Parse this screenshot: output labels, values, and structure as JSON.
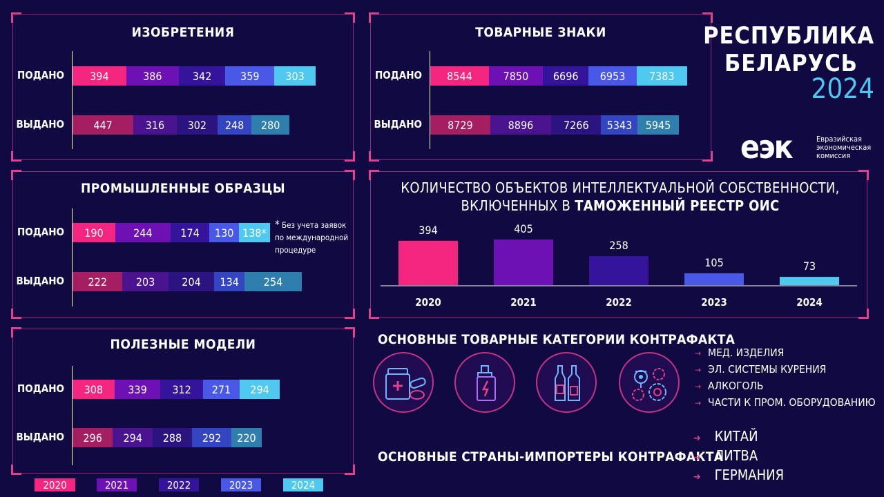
{
  "chart_data": [
    {
      "type": "bar",
      "orientation": "horizontal-stacked",
      "title": "ИЗОБРЕТЕНИЯ",
      "categories": [
        "ПОДАНО",
        "ВЫДАНО"
      ],
      "series": [
        {
          "name": "2020",
          "values": [
            394,
            447
          ]
        },
        {
          "name": "2021",
          "values": [
            386,
            316
          ]
        },
        {
          "name": "2022",
          "values": [
            342,
            302
          ]
        },
        {
          "name": "2023",
          "values": [
            359,
            248
          ]
        },
        {
          "name": "2024",
          "values": [
            303,
            280
          ]
        }
      ]
    },
    {
      "type": "bar",
      "orientation": "horizontal-stacked",
      "title": "ТОВАРНЫЕ ЗНАКИ",
      "categories": [
        "ПОДАНО",
        "ВЫДАНО"
      ],
      "series": [
        {
          "name": "2020",
          "values": [
            8544,
            8729
          ]
        },
        {
          "name": "2021",
          "values": [
            7850,
            8896
          ]
        },
        {
          "name": "2022",
          "values": [
            6696,
            7266
          ]
        },
        {
          "name": "2023",
          "values": [
            6953,
            5343
          ]
        },
        {
          "name": "2024",
          "values": [
            7383,
            5945
          ]
        }
      ]
    },
    {
      "type": "bar",
      "orientation": "horizontal-stacked",
      "title": "ПРОМЫШЛЕННЫЕ ОБРАЗЦЫ",
      "categories": [
        "ПОДАНО",
        "ВЫДАНО"
      ],
      "series": [
        {
          "name": "2020",
          "values": [
            190,
            222
          ]
        },
        {
          "name": "2021",
          "values": [
            244,
            203
          ]
        },
        {
          "name": "2022",
          "values": [
            174,
            204
          ]
        },
        {
          "name": "2023",
          "values": [
            130,
            134
          ]
        },
        {
          "name": "2024",
          "values": [
            138,
            254
          ]
        }
      ],
      "value_suffixes": {
        "0-4": "*"
      },
      "note_star": "*",
      "note": [
        "Без учета заявок",
        "по международной",
        "процедуре"
      ]
    },
    {
      "type": "bar",
      "orientation": "horizontal-stacked",
      "title": "ПОЛЕЗНЫЕ МОДЕЛИ",
      "categories": [
        "ПОДАНО",
        "ВЫДАНО"
      ],
      "series": [
        {
          "name": "2020",
          "values": [
            308,
            296
          ]
        },
        {
          "name": "2021",
          "values": [
            339,
            294
          ]
        },
        {
          "name": "2022",
          "values": [
            312,
            288
          ]
        },
        {
          "name": "2023",
          "values": [
            271,
            292
          ]
        },
        {
          "name": "2024",
          "values": [
            294,
            220
          ]
        }
      ]
    },
    {
      "type": "bar",
      "title_line1": "КОЛИЧЕСТВО ОБЪЕКТОВ ИНТЕЛЛЕКТУАЛЬНОЙ СОБСТВЕННОСТИ,",
      "title_line2_prefix": "ВКЛЮЧЕННЫХ В ",
      "title_line2_bold": "ТАМОЖЕННЫЙ РЕЕСТР ОИС",
      "categories": [
        "2020",
        "2021",
        "2022",
        "2023",
        "2024"
      ],
      "values": [
        394,
        405,
        258,
        105,
        73
      ],
      "ylim": [
        0,
        405
      ]
    }
  ],
  "colors": {
    "year_2020": "#f4267f",
    "year_2021": "#6d11b5",
    "year_2022": "#34149a",
    "year_2023": "#4a58e8",
    "year_2024": "#4fc9ef",
    "issued_2020": "#a51e62",
    "issued_2021": "#4a138f",
    "issued_2022": "#2b1480",
    "issued_2023": "#3345c0",
    "issued_2024": "#2f7fae",
    "background": "#110a42",
    "accent": "#e0408c"
  },
  "legend": [
    "2020",
    "2021",
    "2022",
    "2023",
    "2024"
  ],
  "header": {
    "line1": "РЕСПУБЛИКА",
    "line2": "БЕЛАРУСЬ",
    "year": "2024"
  },
  "logo": {
    "mark": "еэк",
    "line1": "Евразийская",
    "line2": "экономическая",
    "line3": "комиссия"
  },
  "counterfeit_categories": {
    "title": "ОСНОВНЫЕ ТОВАРНЫЕ КАТЕГОРИИ КОНТРАФАКТА",
    "items": [
      "МЕД. ИЗДЕЛИЯ",
      "ЭЛ. СИСТЕМЫ КУРЕНИЯ",
      "АЛКОГОЛЬ",
      "ЧАСТИ К ПРОМ. ОБОРУДОВАНИЮ"
    ],
    "icons": [
      "medicine-icon",
      "vape-icon",
      "alcohol-icon",
      "gears-icon"
    ]
  },
  "counterfeit_countries": {
    "title": "ОСНОВНЫЕ СТРАНЫ-ИМПОРТЕРЫ КОНТРАФАКТА",
    "items": [
      "КИТАЙ",
      "ЛИТВА",
      "ГЕРМАНИЯ"
    ]
  }
}
